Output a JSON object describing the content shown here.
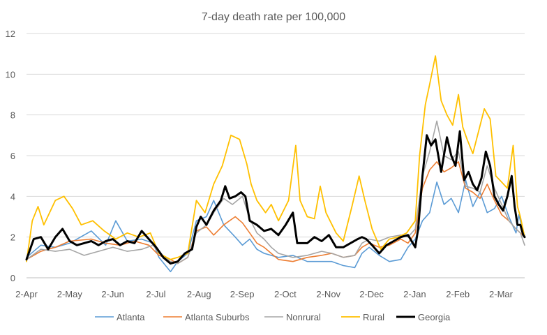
{
  "chart_data": {
    "type": "line",
    "title": "7-day death rate per 100,000",
    "xlabel": "",
    "ylabel": "",
    "ylim": [
      0,
      12
    ],
    "yticks": [
      0,
      2,
      4,
      6,
      8,
      10,
      12
    ],
    "x_tick_labels": [
      "2-Apr",
      "2-May",
      "2-Jun",
      "2-Jul",
      "2-Aug",
      "2-Sep",
      "2-Oct",
      "2-Nov",
      "2-Dec",
      "2-Jan",
      "2-Feb",
      "2-Mar"
    ],
    "x_domain_days": [
      0,
      346
    ],
    "grid": true,
    "legend_position": "bottom",
    "series": [
      {
        "name": "Atlanta",
        "color": "#5b9bd5",
        "width": 1.6,
        "points": [
          [
            0,
            1.0
          ],
          [
            10,
            1.6
          ],
          [
            20,
            1.5
          ],
          [
            30,
            1.7
          ],
          [
            45,
            2.3
          ],
          [
            55,
            1.6
          ],
          [
            62,
            2.8
          ],
          [
            70,
            1.8
          ],
          [
            80,
            1.9
          ],
          [
            88,
            1.7
          ],
          [
            92,
            1.0
          ],
          [
            100,
            0.3
          ],
          [
            105,
            0.8
          ],
          [
            112,
            1.2
          ],
          [
            118,
            2.8
          ],
          [
            125,
            3.0
          ],
          [
            130,
            3.8
          ],
          [
            137,
            2.6
          ],
          [
            145,
            2.0
          ],
          [
            150,
            1.6
          ],
          [
            155,
            1.9
          ],
          [
            160,
            1.4
          ],
          [
            165,
            1.2
          ],
          [
            175,
            1.0
          ],
          [
            185,
            1.1
          ],
          [
            195,
            0.8
          ],
          [
            205,
            0.8
          ],
          [
            212,
            0.8
          ],
          [
            220,
            0.6
          ],
          [
            228,
            0.5
          ],
          [
            233,
            1.2
          ],
          [
            238,
            1.5
          ],
          [
            245,
            1.1
          ],
          [
            252,
            0.8
          ],
          [
            260,
            0.9
          ],
          [
            265,
            1.5
          ],
          [
            270,
            1.9
          ],
          [
            275,
            2.8
          ],
          [
            280,
            3.2
          ],
          [
            285,
            4.7
          ],
          [
            290,
            3.6
          ],
          [
            295,
            3.9
          ],
          [
            300,
            3.2
          ],
          [
            305,
            4.8
          ],
          [
            310,
            3.5
          ],
          [
            315,
            4.2
          ],
          [
            320,
            3.2
          ],
          [
            325,
            3.4
          ],
          [
            330,
            4.0
          ],
          [
            335,
            3.0
          ],
          [
            340,
            2.2
          ],
          [
            342,
            3.1
          ],
          [
            345,
            2.2
          ],
          [
            346,
            2.1
          ]
        ]
      },
      {
        "name": "Atlanta Suburbs",
        "color": "#ed7d31",
        "width": 1.6,
        "points": [
          [
            0,
            0.9
          ],
          [
            10,
            1.3
          ],
          [
            20,
            1.5
          ],
          [
            30,
            1.8
          ],
          [
            45,
            1.9
          ],
          [
            55,
            1.7
          ],
          [
            65,
            1.6
          ],
          [
            75,
            1.8
          ],
          [
            85,
            1.6
          ],
          [
            92,
            1.1
          ],
          [
            100,
            0.9
          ],
          [
            105,
            0.7
          ],
          [
            112,
            1.0
          ],
          [
            118,
            2.3
          ],
          [
            125,
            2.5
          ],
          [
            130,
            2.1
          ],
          [
            137,
            2.6
          ],
          [
            145,
            3.0
          ],
          [
            150,
            2.7
          ],
          [
            155,
            2.2
          ],
          [
            160,
            1.7
          ],
          [
            165,
            1.5
          ],
          [
            175,
            0.9
          ],
          [
            185,
            0.8
          ],
          [
            195,
            1.0
          ],
          [
            205,
            1.1
          ],
          [
            212,
            1.2
          ],
          [
            220,
            1.0
          ],
          [
            228,
            1.1
          ],
          [
            233,
            1.5
          ],
          [
            238,
            1.7
          ],
          [
            245,
            1.5
          ],
          [
            252,
            1.6
          ],
          [
            260,
            1.9
          ],
          [
            265,
            1.7
          ],
          [
            270,
            2.2
          ],
          [
            275,
            4.4
          ],
          [
            280,
            5.3
          ],
          [
            285,
            5.7
          ],
          [
            290,
            5.2
          ],
          [
            295,
            5.4
          ],
          [
            300,
            5.7
          ],
          [
            305,
            4.4
          ],
          [
            310,
            4.2
          ],
          [
            315,
            3.9
          ],
          [
            320,
            4.6
          ],
          [
            325,
            3.8
          ],
          [
            330,
            3.1
          ],
          [
            335,
            2.8
          ],
          [
            340,
            2.4
          ],
          [
            343,
            2.2
          ],
          [
            346,
            2.0
          ]
        ]
      },
      {
        "name": "Nonrural",
        "color": "#a5a5a5",
        "width": 1.6,
        "points": [
          [
            0,
            0.9
          ],
          [
            10,
            1.4
          ],
          [
            20,
            1.3
          ],
          [
            30,
            1.4
          ],
          [
            40,
            1.1
          ],
          [
            50,
            1.3
          ],
          [
            60,
            1.5
          ],
          [
            70,
            1.3
          ],
          [
            80,
            1.4
          ],
          [
            88,
            1.6
          ],
          [
            92,
            1.2
          ],
          [
            100,
            0.8
          ],
          [
            105,
            0.7
          ],
          [
            112,
            1.0
          ],
          [
            118,
            2.2
          ],
          [
            125,
            2.6
          ],
          [
            130,
            3.2
          ],
          [
            137,
            3.9
          ],
          [
            143,
            3.6
          ],
          [
            150,
            4.0
          ],
          [
            155,
            2.9
          ],
          [
            160,
            2.2
          ],
          [
            165,
            1.9
          ],
          [
            170,
            1.5
          ],
          [
            175,
            1.2
          ],
          [
            185,
            1.0
          ],
          [
            195,
            1.1
          ],
          [
            205,
            1.3
          ],
          [
            212,
            1.2
          ],
          [
            220,
            1.0
          ],
          [
            228,
            1.1
          ],
          [
            233,
            1.7
          ],
          [
            238,
            1.9
          ],
          [
            245,
            1.8
          ],
          [
            252,
            2.0
          ],
          [
            260,
            2.1
          ],
          [
            265,
            2.0
          ],
          [
            270,
            2.4
          ],
          [
            275,
            5.0
          ],
          [
            280,
            6.2
          ],
          [
            285,
            7.7
          ],
          [
            290,
            6.0
          ],
          [
            295,
            5.8
          ],
          [
            300,
            6.2
          ],
          [
            305,
            4.5
          ],
          [
            310,
            4.4
          ],
          [
            315,
            4.2
          ],
          [
            320,
            5.5
          ],
          [
            325,
            4.4
          ],
          [
            330,
            3.6
          ],
          [
            335,
            2.8
          ],
          [
            340,
            2.4
          ],
          [
            343,
            2.2
          ],
          [
            346,
            1.6
          ]
        ]
      },
      {
        "name": "Rural",
        "color": "#ffc000",
        "width": 1.8,
        "points": [
          [
            0,
            0.8
          ],
          [
            4,
            2.8
          ],
          [
            8,
            3.5
          ],
          [
            12,
            2.6
          ],
          [
            20,
            3.8
          ],
          [
            26,
            4.0
          ],
          [
            32,
            3.4
          ],
          [
            38,
            2.6
          ],
          [
            46,
            2.8
          ],
          [
            54,
            2.3
          ],
          [
            62,
            1.9
          ],
          [
            70,
            2.2
          ],
          [
            78,
            2.0
          ],
          [
            86,
            2.2
          ],
          [
            92,
            1.2
          ],
          [
            100,
            0.9
          ],
          [
            105,
            1.0
          ],
          [
            112,
            1.2
          ],
          [
            118,
            3.8
          ],
          [
            124,
            3.2
          ],
          [
            130,
            4.6
          ],
          [
            136,
            5.5
          ],
          [
            142,
            7.0
          ],
          [
            148,
            6.8
          ],
          [
            153,
            5.6
          ],
          [
            156,
            4.6
          ],
          [
            160,
            3.8
          ],
          [
            166,
            3.2
          ],
          [
            170,
            3.6
          ],
          [
            175,
            2.8
          ],
          [
            182,
            3.8
          ],
          [
            187,
            6.5
          ],
          [
            190,
            3.8
          ],
          [
            195,
            3.0
          ],
          [
            200,
            2.9
          ],
          [
            204,
            4.5
          ],
          [
            208,
            3.2
          ],
          [
            215,
            2.2
          ],
          [
            220,
            1.8
          ],
          [
            226,
            3.5
          ],
          [
            231,
            5.0
          ],
          [
            235,
            3.8
          ],
          [
            240,
            2.4
          ],
          [
            246,
            1.4
          ],
          [
            252,
            1.9
          ],
          [
            258,
            2.0
          ],
          [
            264,
            2.2
          ],
          [
            270,
            2.8
          ],
          [
            273,
            6.0
          ],
          [
            277,
            8.5
          ],
          [
            280,
            9.5
          ],
          [
            284,
            10.9
          ],
          [
            288,
            8.7
          ],
          [
            292,
            8.0
          ],
          [
            296,
            7.5
          ],
          [
            300,
            9.0
          ],
          [
            303,
            7.4
          ],
          [
            306,
            6.8
          ],
          [
            310,
            6.1
          ],
          [
            314,
            7.2
          ],
          [
            318,
            8.3
          ],
          [
            322,
            7.8
          ],
          [
            326,
            5.0
          ],
          [
            330,
            4.7
          ],
          [
            334,
            4.4
          ],
          [
            338,
            6.5
          ],
          [
            341,
            3.5
          ],
          [
            343,
            3.0
          ],
          [
            346,
            2.0
          ]
        ]
      },
      {
        "name": "Georgia",
        "color": "#000000",
        "width": 3,
        "points": [
          [
            0,
            0.9
          ],
          [
            5,
            1.9
          ],
          [
            10,
            2.0
          ],
          [
            15,
            1.4
          ],
          [
            20,
            2.0
          ],
          [
            25,
            2.4
          ],
          [
            30,
            1.8
          ],
          [
            35,
            1.6
          ],
          [
            40,
            1.7
          ],
          [
            45,
            1.8
          ],
          [
            50,
            1.6
          ],
          [
            55,
            1.8
          ],
          [
            60,
            1.9
          ],
          [
            65,
            1.6
          ],
          [
            70,
            1.8
          ],
          [
            75,
            1.7
          ],
          [
            80,
            2.3
          ],
          [
            85,
            1.9
          ],
          [
            90,
            1.5
          ],
          [
            95,
            1.0
          ],
          [
            100,
            0.7
          ],
          [
            105,
            0.8
          ],
          [
            110,
            1.2
          ],
          [
            115,
            1.4
          ],
          [
            118,
            2.5
          ],
          [
            121,
            3.0
          ],
          [
            125,
            2.6
          ],
          [
            130,
            3.3
          ],
          [
            135,
            3.8
          ],
          [
            138,
            4.5
          ],
          [
            141,
            3.9
          ],
          [
            145,
            4.0
          ],
          [
            149,
            4.2
          ],
          [
            152,
            4.0
          ],
          [
            155,
            2.8
          ],
          [
            160,
            2.6
          ],
          [
            165,
            2.3
          ],
          [
            170,
            2.4
          ],
          [
            175,
            2.1
          ],
          [
            180,
            2.6
          ],
          [
            185,
            3.2
          ],
          [
            188,
            1.7
          ],
          [
            195,
            1.7
          ],
          [
            200,
            2.0
          ],
          [
            205,
            1.8
          ],
          [
            210,
            2.1
          ],
          [
            215,
            1.5
          ],
          [
            220,
            1.5
          ],
          [
            225,
            1.7
          ],
          [
            230,
            1.9
          ],
          [
            233,
            2.0
          ],
          [
            236,
            1.9
          ],
          [
            240,
            1.6
          ],
          [
            245,
            1.2
          ],
          [
            250,
            1.6
          ],
          [
            255,
            1.8
          ],
          [
            260,
            2.0
          ],
          [
            265,
            2.1
          ],
          [
            270,
            1.5
          ],
          [
            272,
            2.4
          ],
          [
            275,
            5.0
          ],
          [
            278,
            7.0
          ],
          [
            281,
            6.5
          ],
          [
            284,
            6.8
          ],
          [
            288,
            5.2
          ],
          [
            292,
            6.9
          ],
          [
            295,
            6.0
          ],
          [
            298,
            5.5
          ],
          [
            301,
            7.2
          ],
          [
            304,
            4.8
          ],
          [
            307,
            5.2
          ],
          [
            310,
            4.6
          ],
          [
            313,
            4.3
          ],
          [
            316,
            4.9
          ],
          [
            319,
            6.2
          ],
          [
            322,
            5.5
          ],
          [
            325,
            4.0
          ],
          [
            328,
            3.6
          ],
          [
            331,
            3.3
          ],
          [
            334,
            4.0
          ],
          [
            337,
            5.0
          ],
          [
            339,
            3.5
          ],
          [
            341,
            2.6
          ],
          [
            343,
            2.6
          ],
          [
            345,
            2.1
          ],
          [
            346,
            2.0
          ]
        ]
      }
    ]
  }
}
